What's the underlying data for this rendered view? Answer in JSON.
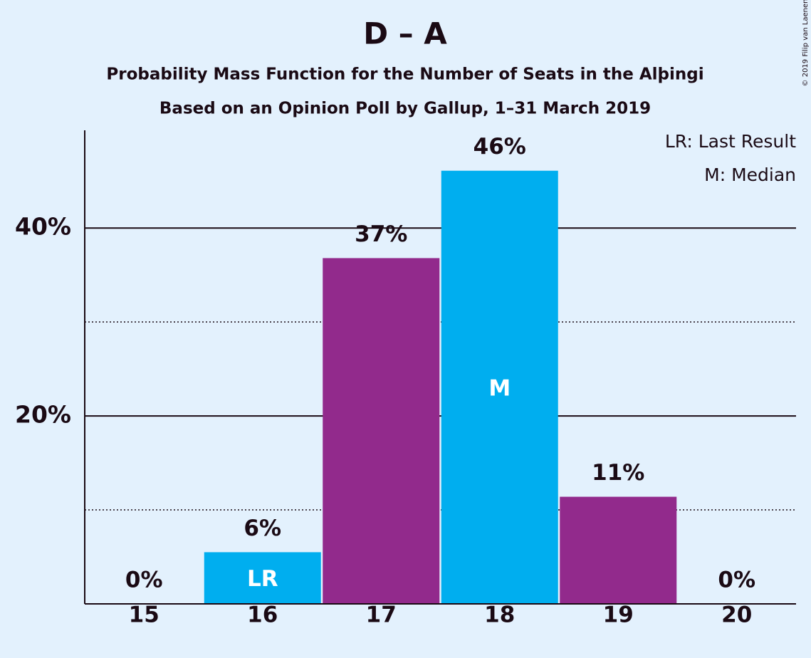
{
  "chart_data": {
    "type": "bar",
    "title": "D – A",
    "subtitle": "Probability Mass Function for the Number of Seats in the Alþingi",
    "subtitle2": "Based on an Opinion Poll by Gallup, 1–31 March 2019",
    "copyright": "© 2019 Filip van Laenen",
    "categories": [
      "15",
      "16",
      "17",
      "18",
      "19",
      "20"
    ],
    "values": [
      0,
      5.5,
      36.8,
      46.1,
      11.4,
      0
    ],
    "value_labels": [
      "0%",
      "6%",
      "37%",
      "46%",
      "11%",
      "0%"
    ],
    "colors": [
      "#00aeef",
      "#00aeef",
      "#922a8c",
      "#00aeef",
      "#922a8c",
      "#922a8c"
    ],
    "bar_annotations": [
      null,
      "LR",
      null,
      "M",
      null,
      null
    ],
    "legend": [
      "LR: Last Result",
      "M: Median"
    ],
    "ylim": [
      0,
      50.4
    ],
    "yticks": [
      {
        "value": 20,
        "label": "20%"
      },
      {
        "value": 40,
        "label": "40%"
      }
    ],
    "minor_yticks": [
      10,
      30
    ],
    "grid": true
  }
}
